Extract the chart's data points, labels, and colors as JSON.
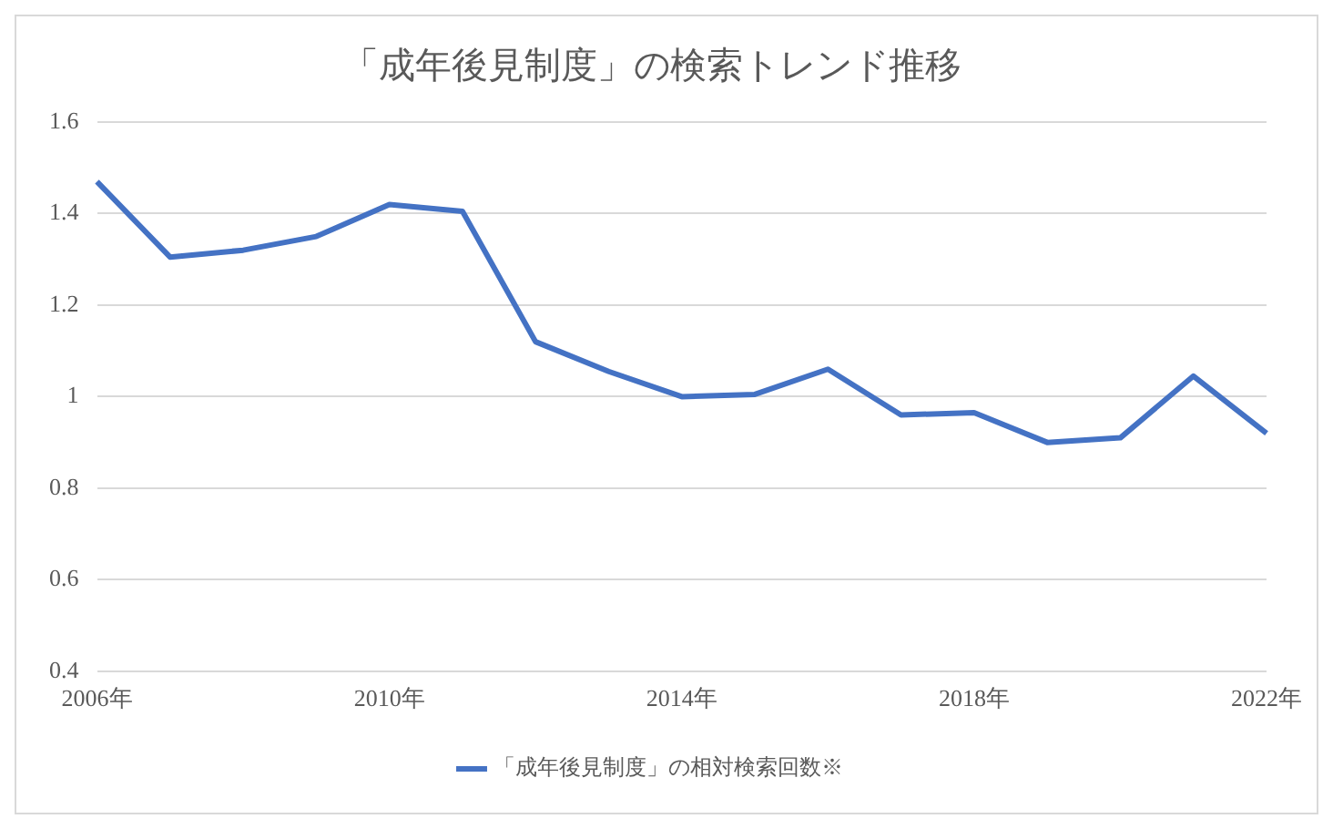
{
  "chart_data": {
    "type": "line",
    "title": "「成年後見制度」の検索トレンド推移",
    "categories": [
      "2006年",
      null,
      null,
      null,
      "2010年",
      null,
      null,
      null,
      "2014年",
      null,
      null,
      null,
      "2018年",
      null,
      null,
      null,
      "2022年"
    ],
    "series": [
      {
        "name": "「成年後見制度」の相対検索回数※",
        "color": "#4472c4",
        "values": [
          1.47,
          1.305,
          1.32,
          1.35,
          1.42,
          1.405,
          1.12,
          1.055,
          1.0,
          1.005,
          1.06,
          0.96,
          0.965,
          0.9,
          0.91,
          1.045,
          0.92
        ]
      }
    ],
    "ylim": [
      0.4,
      1.6
    ],
    "yticks": [
      0.4,
      0.6,
      0.8,
      1,
      1.2,
      1.4,
      1.6
    ],
    "grid": "y",
    "legend": "bottom",
    "marker": "none",
    "line_style": "solid"
  }
}
